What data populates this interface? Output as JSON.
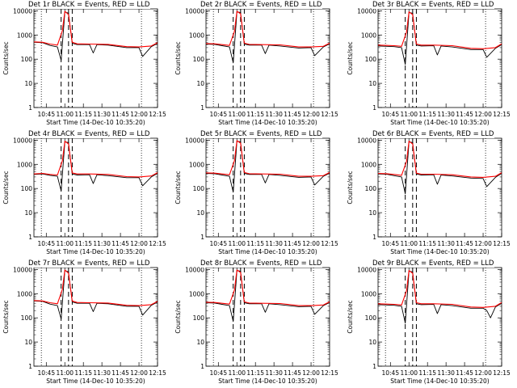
{
  "colors": {
    "events": "#000000",
    "lld": "#ff0000",
    "background": "#ffffff"
  },
  "chart_data": [
    {
      "type": "line",
      "title": "Det 1r BLACK = Events, RED = LLD",
      "xlabel": "Start Time (14-Dec-10 10:35:20)",
      "ylabel": "Counts/sec",
      "log_y": true,
      "ylim": [
        1,
        12000
      ],
      "xlim": [
        "10:35",
        "12:15"
      ],
      "x_ticks": [
        "10:45",
        "11:00",
        "11:15",
        "11:30",
        "11:45",
        "12:00",
        "12:15"
      ],
      "y_ticks": [
        "1",
        "10",
        "100",
        "1000",
        "10000"
      ],
      "dotted_lines": [
        "10:41",
        "12:02"
      ],
      "dashed_lines": [
        "10:57",
        "11:03",
        "11:06"
      ],
      "series": [
        {
          "name": "BLACK = Events",
          "x": [
            "10:35",
            "10:42",
            "10:48",
            "10:54",
            "10:57",
            "11:00",
            "11:03",
            "11:06",
            "11:10",
            "11:20",
            "11:23",
            "11:26",
            "11:35",
            "11:50",
            "12:00",
            "12:03",
            "12:10",
            "12:15"
          ],
          "y": [
            500,
            480,
            370,
            320,
            90,
            9000,
            8000,
            450,
            400,
            400,
            180,
            400,
            380,
            300,
            300,
            130,
            330,
            450
          ]
        },
        {
          "name": "RED = LLD",
          "x": [
            "10:35",
            "10:42",
            "10:48",
            "10:54",
            "10:58",
            "11:00",
            "11:03",
            "11:06",
            "11:10",
            "11:20",
            "11:35",
            "11:50",
            "12:00",
            "12:10",
            "12:15"
          ],
          "y": [
            520,
            500,
            420,
            380,
            1500,
            9500,
            7000,
            500,
            430,
            420,
            410,
            330,
            320,
            350,
            480
          ]
        }
      ]
    },
    {
      "type": "line",
      "title": "Det 2r BLACK = Events, RED = LLD",
      "xlabel": "Start Time (14-Dec-10 10:35:20)",
      "ylabel": "Counts/sec",
      "log_y": true,
      "ylim": [
        1,
        12000
      ],
      "xlim": [
        "10:35",
        "12:15"
      ],
      "x_ticks": [
        "10:45",
        "11:00",
        "11:15",
        "11:30",
        "11:45",
        "12:00",
        "12:15"
      ],
      "y_ticks": [
        "1",
        "10",
        "100",
        "1000",
        "10000"
      ],
      "dotted_lines": [
        "10:41",
        "12:02"
      ],
      "dashed_lines": [
        "10:57",
        "11:03",
        "11:06"
      ],
      "series": [
        {
          "name": "BLACK = Events",
          "x": [
            "10:35",
            "10:42",
            "10:48",
            "10:54",
            "10:57",
            "11:00",
            "11:03",
            "11:06",
            "11:10",
            "11:20",
            "11:23",
            "11:26",
            "11:35",
            "11:50",
            "12:00",
            "12:03",
            "12:10",
            "12:15"
          ],
          "y": [
            420,
            410,
            360,
            320,
            70,
            9000,
            8500,
            420,
            380,
            380,
            170,
            380,
            350,
            290,
            300,
            140,
            320,
            430
          ]
        },
        {
          "name": "RED = LLD",
          "x": [
            "10:35",
            "10:42",
            "10:48",
            "10:54",
            "10:58",
            "11:00",
            "11:03",
            "11:06",
            "11:10",
            "11:20",
            "11:35",
            "11:50",
            "12:00",
            "12:10",
            "12:15"
          ],
          "y": [
            440,
            430,
            400,
            370,
            1400,
            9500,
            7500,
            460,
            410,
            400,
            390,
            320,
            320,
            340,
            460
          ]
        }
      ]
    },
    {
      "type": "line",
      "title": "Det 3r BLACK = Events, RED = LLD",
      "xlabel": "Start Time (14-Dec-10 10:35:20)",
      "ylabel": "Counts/sec",
      "log_y": true,
      "ylim": [
        1,
        12000
      ],
      "xlim": [
        "10:35",
        "12:15"
      ],
      "x_ticks": [
        "10:45",
        "11:00",
        "11:15",
        "11:30",
        "11:45",
        "12:00",
        "12:15"
      ],
      "y_ticks": [
        "1",
        "10",
        "100",
        "1000",
        "10000"
      ],
      "dotted_lines": [
        "10:41",
        "12:02"
      ],
      "dashed_lines": [
        "10:57",
        "11:03",
        "11:06"
      ],
      "series": [
        {
          "name": "BLACK = Events",
          "x": [
            "10:35",
            "10:42",
            "10:48",
            "10:54",
            "10:57",
            "11:00",
            "11:03",
            "11:06",
            "11:10",
            "11:20",
            "11:23",
            "11:26",
            "11:35",
            "11:50",
            "12:00",
            "12:03",
            "12:10",
            "12:15"
          ],
          "y": [
            350,
            340,
            330,
            300,
            60,
            8500,
            8000,
            380,
            350,
            360,
            150,
            350,
            320,
            250,
            250,
            120,
            280,
            400
          ]
        },
        {
          "name": "RED = LLD",
          "x": [
            "10:35",
            "10:42",
            "10:48",
            "10:54",
            "10:58",
            "11:00",
            "11:03",
            "11:06",
            "11:10",
            "11:20",
            "11:35",
            "11:50",
            "12:00",
            "12:10",
            "12:15"
          ],
          "y": [
            380,
            370,
            360,
            340,
            1300,
            9000,
            7000,
            420,
            380,
            380,
            360,
            280,
            270,
            300,
            430
          ]
        }
      ]
    },
    {
      "type": "line",
      "title": "Det 4r BLACK = Events, RED = LLD",
      "xlabel": "Start Time (14-Dec-10 10:35:20)",
      "ylabel": "Counts/sec",
      "log_y": true,
      "ylim": [
        1,
        12000
      ],
      "xlim": [
        "10:35",
        "12:15"
      ],
      "x_ticks": [
        "10:45",
        "11:00",
        "11:15",
        "11:30",
        "11:45",
        "12:00",
        "12:15"
      ],
      "y_ticks": [
        "1",
        "10",
        "100",
        "1000",
        "10000"
      ],
      "dotted_lines": [
        "10:41",
        "12:02"
      ],
      "dashed_lines": [
        "10:57",
        "11:03",
        "11:06"
      ],
      "series": [
        {
          "name": "BLACK = Events",
          "x": [
            "10:35",
            "10:42",
            "10:48",
            "10:54",
            "10:57",
            "11:00",
            "11:03",
            "11:06",
            "11:10",
            "11:20",
            "11:23",
            "11:26",
            "11:35",
            "11:50",
            "12:00",
            "12:03",
            "12:10",
            "12:15"
          ],
          "y": [
            380,
            400,
            350,
            320,
            80,
            8500,
            8000,
            400,
            360,
            370,
            160,
            370,
            340,
            280,
            280,
            130,
            300,
            420
          ]
        },
        {
          "name": "RED = LLD",
          "x": [
            "10:35",
            "10:42",
            "10:48",
            "10:54",
            "10:58",
            "11:00",
            "11:03",
            "11:06",
            "11:10",
            "11:20",
            "11:35",
            "11:50",
            "12:00",
            "12:10",
            "12:15"
          ],
          "y": [
            400,
            420,
            380,
            360,
            1400,
            9000,
            7000,
            440,
            400,
            400,
            380,
            310,
            300,
            330,
            450
          ]
        }
      ]
    },
    {
      "type": "line",
      "title": "Det 5r BLACK = Events, RED = LLD",
      "xlabel": "Start Time (14-Dec-10 10:35:20)",
      "ylabel": "Counts/sec",
      "log_y": true,
      "ylim": [
        1,
        12000
      ],
      "xlim": [
        "10:35",
        "12:15"
      ],
      "x_ticks": [
        "10:45",
        "11:00",
        "11:15",
        "11:30",
        "11:45",
        "12:00",
        "12:15"
      ],
      "y_ticks": [
        "1",
        "10",
        "100",
        "1000",
        "10000"
      ],
      "dotted_lines": [
        "10:41",
        "12:02"
      ],
      "dashed_lines": [
        "10:57",
        "11:03",
        "11:06"
      ],
      "series": [
        {
          "name": "BLACK = Events",
          "x": [
            "10:35",
            "10:42",
            "10:48",
            "10:54",
            "10:57",
            "11:00",
            "11:03",
            "11:06",
            "11:10",
            "11:20",
            "11:23",
            "11:26",
            "11:35",
            "11:50",
            "12:00",
            "12:03",
            "12:10",
            "12:15"
          ],
          "y": [
            420,
            410,
            360,
            320,
            70,
            9000,
            8500,
            420,
            380,
            380,
            170,
            380,
            350,
            290,
            300,
            140,
            320,
            430
          ]
        },
        {
          "name": "RED = LLD",
          "x": [
            "10:35",
            "10:42",
            "10:48",
            "10:54",
            "10:58",
            "11:00",
            "11:03",
            "11:06",
            "11:10",
            "11:20",
            "11:35",
            "11:50",
            "12:00",
            "12:10",
            "12:15"
          ],
          "y": [
            440,
            430,
            400,
            370,
            1400,
            9500,
            7500,
            460,
            410,
            400,
            390,
            320,
            320,
            340,
            460
          ]
        }
      ]
    },
    {
      "type": "line",
      "title": "Det 6r BLACK = Events, RED = LLD",
      "xlabel": "Start Time (14-Dec-10 10:35:20)",
      "ylabel": "Counts/sec",
      "log_y": true,
      "ylim": [
        1,
        12000
      ],
      "xlim": [
        "10:35",
        "12:15"
      ],
      "x_ticks": [
        "10:45",
        "11:00",
        "11:15",
        "11:30",
        "11:45",
        "12:00",
        "12:15"
      ],
      "y_ticks": [
        "1",
        "10",
        "100",
        "1000",
        "10000"
      ],
      "dotted_lines": [
        "10:41",
        "12:02"
      ],
      "dashed_lines": [
        "10:57",
        "11:03",
        "11:06"
      ],
      "series": [
        {
          "name": "BLACK = Events",
          "x": [
            "10:35",
            "10:42",
            "10:48",
            "10:54",
            "10:57",
            "11:00",
            "11:03",
            "11:06",
            "11:10",
            "11:20",
            "11:23",
            "11:26",
            "11:35",
            "11:50",
            "12:00",
            "12:03",
            "12:10",
            "12:15"
          ],
          "y": [
            400,
            390,
            340,
            300,
            60,
            8500,
            8000,
            400,
            360,
            370,
            150,
            360,
            330,
            270,
            260,
            120,
            290,
            420
          ]
        },
        {
          "name": "RED = LLD",
          "x": [
            "10:35",
            "10:42",
            "10:48",
            "10:54",
            "10:58",
            "11:00",
            "11:03",
            "11:06",
            "11:10",
            "11:20",
            "11:35",
            "11:50",
            "12:00",
            "12:10",
            "12:15"
          ],
          "y": [
            420,
            410,
            380,
            350,
            1300,
            9000,
            7000,
            430,
            390,
            390,
            370,
            300,
            290,
            320,
            450
          ]
        }
      ]
    },
    {
      "type": "line",
      "title": "Det 7r BLACK = Events, RED = LLD",
      "xlabel": "Start Time (14-Dec-10 10:35:20)",
      "ylabel": "Counts/sec",
      "log_y": true,
      "ylim": [
        1,
        12000
      ],
      "xlim": [
        "10:35",
        "12:15"
      ],
      "x_ticks": [
        "10:45",
        "11:00",
        "11:15",
        "11:30",
        "11:45",
        "12:00",
        "12:15"
      ],
      "y_ticks": [
        "1",
        "10",
        "100",
        "1000",
        "10000"
      ],
      "dotted_lines": [
        "10:41",
        "12:02"
      ],
      "dashed_lines": [
        "10:57",
        "11:03",
        "11:06"
      ],
      "series": [
        {
          "name": "BLACK = Events",
          "x": [
            "10:35",
            "10:42",
            "10:48",
            "10:54",
            "10:57",
            "11:00",
            "11:03",
            "11:06",
            "11:10",
            "11:20",
            "11:23",
            "11:26",
            "11:35",
            "11:50",
            "12:00",
            "12:03",
            "12:10",
            "12:15"
          ],
          "y": [
            500,
            480,
            370,
            320,
            90,
            9000,
            8000,
            450,
            400,
            400,
            180,
            400,
            380,
            300,
            300,
            130,
            330,
            450
          ]
        },
        {
          "name": "RED = LLD",
          "x": [
            "10:35",
            "10:42",
            "10:48",
            "10:54",
            "10:58",
            "11:00",
            "11:03",
            "11:06",
            "11:10",
            "11:20",
            "11:35",
            "11:50",
            "12:00",
            "12:10",
            "12:15"
          ],
          "y": [
            520,
            500,
            420,
            380,
            1500,
            9500,
            7000,
            500,
            430,
            420,
            410,
            330,
            320,
            350,
            480
          ]
        }
      ]
    },
    {
      "type": "line",
      "title": "Det 8r BLACK = Events, RED = LLD",
      "xlabel": "Start Time (14-Dec-10 10:35:20)",
      "ylabel": "Counts/sec",
      "log_y": true,
      "ylim": [
        1,
        12000
      ],
      "xlim": [
        "10:35",
        "12:15"
      ],
      "x_ticks": [
        "10:45",
        "11:00",
        "11:15",
        "11:30",
        "11:45",
        "12:00",
        "12:15"
      ],
      "y_ticks": [
        "1",
        "10",
        "100",
        "1000",
        "10000"
      ],
      "dotted_lines": [
        "10:41",
        "12:02"
      ],
      "dashed_lines": [
        "10:57",
        "11:03",
        "11:06"
      ],
      "series": [
        {
          "name": "BLACK = Events",
          "x": [
            "10:35",
            "10:42",
            "10:48",
            "10:54",
            "10:57",
            "11:00",
            "11:03",
            "11:06",
            "11:10",
            "11:20",
            "11:23",
            "11:26",
            "11:35",
            "11:50",
            "12:00",
            "12:03",
            "12:10",
            "12:15"
          ],
          "y": [
            420,
            410,
            360,
            320,
            70,
            9000,
            8500,
            420,
            380,
            380,
            170,
            380,
            350,
            290,
            300,
            140,
            320,
            430
          ]
        },
        {
          "name": "RED = LLD",
          "x": [
            "10:35",
            "10:42",
            "10:48",
            "10:54",
            "10:58",
            "11:00",
            "11:03",
            "11:06",
            "11:10",
            "11:20",
            "11:35",
            "11:50",
            "12:00",
            "12:10",
            "12:15"
          ],
          "y": [
            440,
            430,
            400,
            370,
            1400,
            9500,
            7500,
            460,
            410,
            400,
            390,
            320,
            320,
            340,
            460
          ]
        }
      ]
    },
    {
      "type": "line",
      "title": "Det 9r BLACK = Events, RED = LLD",
      "xlabel": "Start Time (14-Dec-10 10:35:20)",
      "ylabel": "Counts/sec",
      "log_y": true,
      "ylim": [
        1,
        12000
      ],
      "xlim": [
        "10:35",
        "12:15"
      ],
      "x_ticks": [
        "10:45",
        "11:00",
        "11:15",
        "11:30",
        "11:45",
        "12:00",
        "12:15"
      ],
      "y_ticks": [
        "1",
        "10",
        "100",
        "1000",
        "10000"
      ],
      "dotted_lines": [
        "10:41",
        "12:02"
      ],
      "dashed_lines": [
        "10:57",
        "11:03",
        "11:06"
      ],
      "series": [
        {
          "name": "BLACK = Events",
          "x": [
            "10:35",
            "10:42",
            "10:48",
            "10:54",
            "10:57",
            "11:00",
            "11:03",
            "11:06",
            "11:10",
            "11:20",
            "11:23",
            "11:26",
            "11:35",
            "11:50",
            "12:00",
            "12:03",
            "12:06",
            "12:10",
            "12:15"
          ],
          "y": [
            350,
            340,
            330,
            300,
            60,
            8500,
            8000,
            380,
            350,
            360,
            150,
            350,
            320,
            250,
            250,
            200,
            100,
            280,
            400
          ]
        },
        {
          "name": "RED = LLD",
          "x": [
            "10:35",
            "10:42",
            "10:48",
            "10:54",
            "10:58",
            "11:00",
            "11:03",
            "11:06",
            "11:10",
            "11:20",
            "11:35",
            "11:50",
            "12:00",
            "12:10",
            "12:15"
          ],
          "y": [
            380,
            370,
            360,
            340,
            1300,
            9000,
            7000,
            420,
            380,
            380,
            360,
            280,
            270,
            300,
            430
          ]
        }
      ]
    }
  ]
}
